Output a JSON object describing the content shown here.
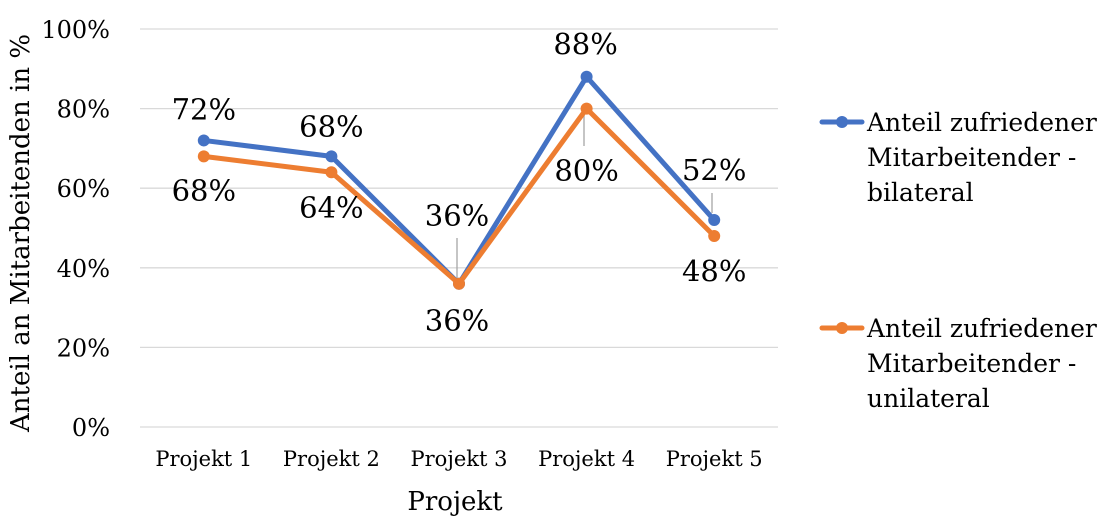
{
  "chart_data": {
    "type": "line",
    "categories": [
      "Projekt 1",
      "Projekt 2",
      "Projekt 3",
      "Projekt 4",
      "Projekt 5"
    ],
    "series": [
      {
        "name": "Anteil zufriedener Mitarbeitender - bilateral",
        "legend_lines": [
          "Anteil zufriedener",
          "Mitarbeitender -",
          "bilateral"
        ],
        "values": [
          72,
          68,
          36,
          88,
          52
        ],
        "labels": [
          "72%",
          "68%",
          "36%",
          "88%",
          "52%"
        ],
        "color": "#4472C4"
      },
      {
        "name": "Anteil zufriedener Mitarbeitender - unilateral",
        "legend_lines": [
          "Anteil zufriedener",
          "Mitarbeitender -",
          "unilateral"
        ],
        "values": [
          68,
          64,
          36,
          80,
          48
        ],
        "labels": [
          "68%",
          "64%",
          "36%",
          "80%",
          "48%"
        ],
        "color": "#ED7D31"
      }
    ],
    "xlabel": "Projekt",
    "ylabel": "Anteil an Mitarbeitenden in %",
    "ylim": [
      0,
      100
    ],
    "yticks": [
      0,
      20,
      40,
      60,
      80,
      100
    ],
    "ytick_labels": [
      "0%",
      "20%",
      "40%",
      "60%",
      "80%",
      "100%"
    ],
    "grid": true,
    "legend_position": "right"
  }
}
